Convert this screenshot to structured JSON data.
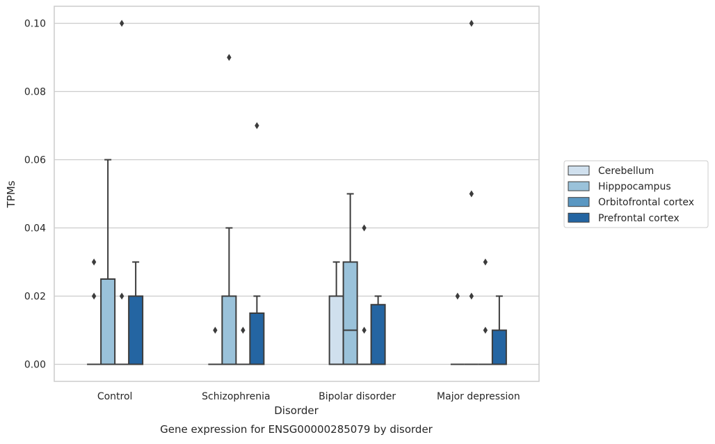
{
  "chart_data": {
    "type": "box",
    "caption": "Gene expression for ENSG00000285079 by disorder",
    "xlabel": "Disorder",
    "ylabel": "TPMs",
    "ylim": [
      -0.005,
      0.105
    ],
    "yticks": [
      "0.00",
      "0.02",
      "0.04",
      "0.06",
      "0.08",
      "0.10"
    ],
    "ytick_values": [
      0,
      0.02,
      0.04,
      0.06,
      0.08,
      0.1
    ],
    "grid": true,
    "legend_position": "right",
    "categories": [
      "Control",
      "Schizophrenia",
      "Bipolar disorder",
      "Major depression"
    ],
    "series": [
      {
        "name": "Cerebellum",
        "color": "#d0e0ee",
        "boxes": [
          {
            "q1": 0,
            "median": 0,
            "q3": 0,
            "whislo": 0,
            "whishi": 0,
            "fliers": []
          },
          {
            "q1": 0,
            "median": 0,
            "q3": 0,
            "whislo": 0,
            "whishi": 0,
            "fliers": [
              0.01
            ]
          },
          {
            "q1": 0,
            "median": 0,
            "q3": 0.02,
            "whislo": 0,
            "whishi": 0.03,
            "fliers": []
          },
          {
            "q1": 0,
            "median": 0,
            "q3": 0,
            "whislo": 0,
            "whishi": 0,
            "fliers": [
              0.02
            ]
          }
        ]
      },
      {
        "name": "Hipppocampus",
        "color": "#9ac2da",
        "boxes": [
          {
            "q1": 0,
            "median": 0,
            "q3": 0.025,
            "whislo": 0,
            "whishi": 0.06,
            "fliers": []
          },
          {
            "q1": 0,
            "median": 0,
            "q3": 0.02,
            "whislo": 0,
            "whishi": 0.04,
            "fliers": [
              0.09
            ]
          },
          {
            "q1": 0,
            "median": 0.01,
            "q3": 0.03,
            "whislo": 0,
            "whishi": 0.05,
            "fliers": []
          },
          {
            "q1": 0,
            "median": 0,
            "q3": 0,
            "whislo": 0,
            "whishi": 0,
            "fliers": [
              0.02,
              0.05,
              0.1
            ]
          }
        ]
      },
      {
        "name": "Orbitofrontal cortex",
        "color": "#5a97c2",
        "boxes": [
          {
            "q1": 0,
            "median": 0,
            "q3": 0,
            "whislo": 0,
            "whishi": 0,
            "fliers": [
              0.02,
              0.1
            ]
          },
          {
            "q1": 0,
            "median": 0,
            "q3": 0,
            "whislo": 0,
            "whishi": 0,
            "fliers": [
              0.01
            ]
          },
          {
            "q1": 0,
            "median": 0,
            "q3": 0,
            "whislo": 0,
            "whishi": 0,
            "fliers": [
              0.01,
              0.04
            ]
          },
          {
            "q1": 0,
            "median": 0,
            "q3": 0,
            "whislo": 0,
            "whishi": 0,
            "fliers": [
              0.01,
              0.03
            ]
          }
        ]
      },
      {
        "name": "Prefrontal cortex",
        "color": "#2465a2",
        "boxes": [
          {
            "q1": 0,
            "median": 0,
            "q3": 0.02,
            "whislo": 0,
            "whishi": 0.03,
            "fliers": []
          },
          {
            "q1": 0,
            "median": 0,
            "q3": 0.015,
            "whislo": 0,
            "whishi": 0.02,
            "fliers": [
              0.07
            ]
          },
          {
            "q1": 0,
            "median": 0,
            "q3": 0.0175,
            "whislo": 0,
            "whishi": 0.02,
            "fliers": []
          },
          {
            "q1": 0,
            "median": 0,
            "q3": 0.01,
            "whislo": 0,
            "whishi": 0.02,
            "fliers": []
          }
        ]
      }
    ],
    "extra_fliers": [
      {
        "category": 0,
        "series": 0,
        "values": [
          0.02,
          0.03
        ]
      }
    ]
  }
}
